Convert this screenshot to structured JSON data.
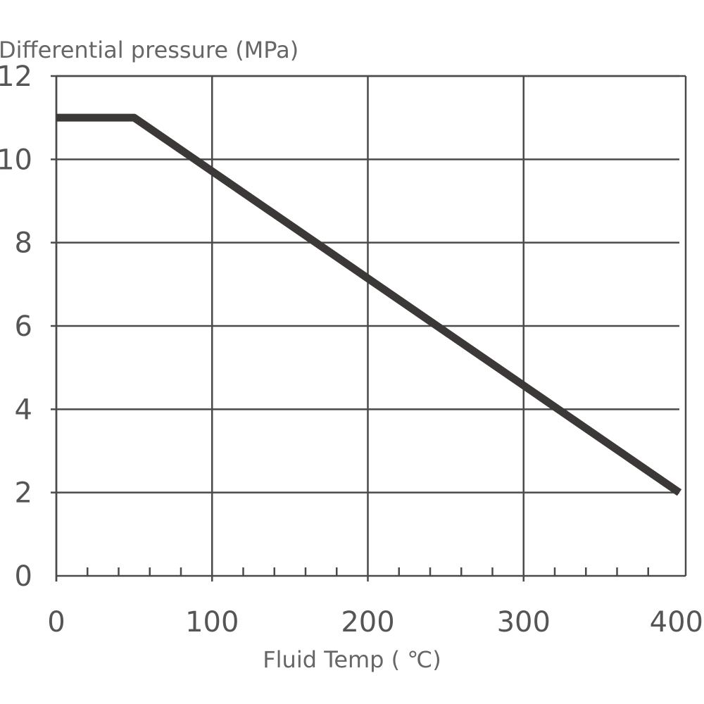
{
  "chart_data": {
    "type": "line",
    "title": "",
    "ylabel": "Differential pressure (MPa)",
    "xlabel": "Fluid Temp ( ℃)",
    "xlim": [
      0,
      400
    ],
    "ylim": [
      0,
      12
    ],
    "x_ticks": [
      0,
      100,
      200,
      300,
      400
    ],
    "y_ticks": [
      0,
      2,
      4,
      6,
      8,
      10,
      12
    ],
    "x_minor_ticks": [
      20,
      40,
      60,
      80,
      120,
      140,
      160,
      180,
      220,
      240,
      260,
      280,
      320,
      340,
      360,
      380
    ],
    "grid": true,
    "series": [
      {
        "name": "Differential pressure",
        "color": "#3d3838",
        "x": [
          0,
          50,
          400
        ],
        "y": [
          11,
          11,
          2
        ]
      }
    ]
  }
}
